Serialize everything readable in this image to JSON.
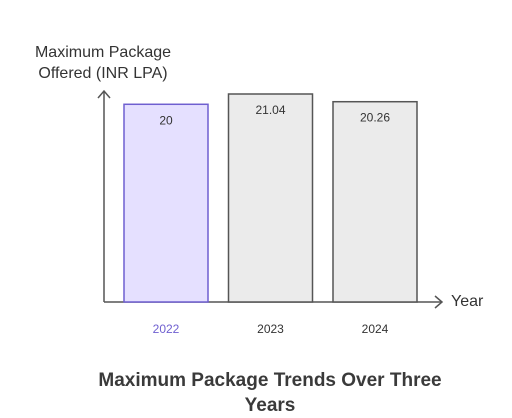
{
  "chart_data": {
    "type": "bar",
    "title": "Maximum Package Trends Over Three Years",
    "ylabel": "Maximum Package Offered (INR LPA)",
    "xlabel": "Year",
    "categories": [
      "2022",
      "2023",
      "2024"
    ],
    "values": [
      20,
      21.04,
      20.26
    ],
    "value_labels": [
      "20",
      "21.04",
      "20.26"
    ],
    "highlighted_category": "2022",
    "grid": false,
    "legend": "none"
  },
  "colors": {
    "highlight_fill": "#e5e0ff",
    "highlight_stroke": "#6f5fd0",
    "highlight_tick": "#6f5fd0",
    "bar_fill": "#ebebeb",
    "bar_stroke": "#555555",
    "tick": "#333333",
    "axis": "#555555"
  }
}
